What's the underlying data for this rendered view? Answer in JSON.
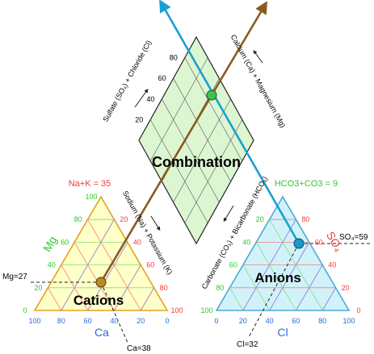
{
  "diagram": {
    "regions": {
      "combination": "Combination",
      "cations": "Cations",
      "anions": "Anions"
    },
    "axis_labels": {
      "sulfate_chloride": "Sulfate (SO₄) + Chloride (Cl)",
      "calcium_magnesium": "Calcium (Ca) + Magnesium (Mg)",
      "sodium_potassium": "Sodium (Na) + Potassium (K)",
      "carbonate_bicarbonate": "Carbonate (CO₃) + Bicarbonate (HCO₃)",
      "mg": "Mg",
      "ca": "Ca",
      "cl": "Cl",
      "so4": "SO₄"
    },
    "annotations": {
      "na_k": "Na+K = 35",
      "hco3_co3": "HCO3+CO3 = 9",
      "mg_value": "Mg=27",
      "ca_value": "Ca=38",
      "so4_value": "SO₄=59",
      "cl_value": "Cl=32"
    },
    "ticks": {
      "twenty_step": [
        "20",
        "40",
        "60",
        "80"
      ],
      "full": [
        "0",
        "20",
        "40",
        "60",
        "80",
        "100"
      ]
    },
    "sample": {
      "ca": 38,
      "mg": 27,
      "na_k": 35,
      "cl": 32,
      "so4": 59,
      "hco3_co3": 9
    },
    "colors": {
      "cation_fill": "#ffffc8",
      "cation_edge": "#e6a020",
      "anion_fill": "#d2f2fa",
      "anion_edge": "#4aaad8",
      "diamond_fill": "#dcf6d2",
      "green_label": "#2ec82e",
      "red_label": "#f03c3c",
      "blue_label": "#2a6bd6",
      "cation_projection": "#8a5a20",
      "anion_projection": "#1aa0d0",
      "pink_grid": "#f08080",
      "cyan_grid": "#6ad6f0",
      "green_grid": "#7ce07c",
      "violet_grid": "#8070d8"
    },
    "markers": {
      "cation_point_color": "#b88a28",
      "anion_point_color": "#1a98cc",
      "diamond_point_color": "#3ec050"
    }
  }
}
